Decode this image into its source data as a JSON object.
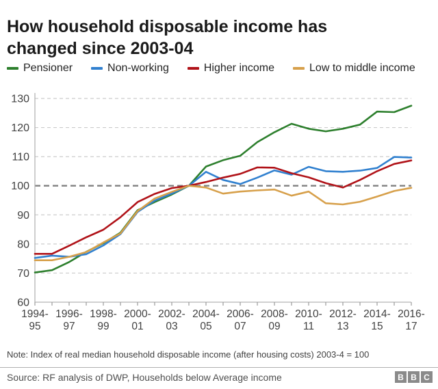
{
  "header": {
    "title": "How household disposable income has changed since 2003-04"
  },
  "footer": {
    "note": "Note: Index of real median household disposable income (after housing costs) 2003-4 = 100",
    "source": "Source: RF analysis of DWP, Households below Average income",
    "logo_letters": [
      "B",
      "B",
      "C"
    ]
  },
  "chart_data": {
    "type": "line",
    "title": "How household disposable income has changed since 2003-04",
    "xlabel": "",
    "ylabel": "",
    "ylim": [
      60,
      130
    ],
    "ytick_step": 10,
    "baseline_value": 100,
    "grid": true,
    "legend_position": "top",
    "axis_colors": {
      "gridline": "#cccccc",
      "baseline": "#808080",
      "axis_line": "#b3b3b3",
      "tick": "#999999",
      "label": "#404040"
    },
    "categories": [
      "1994-95",
      "1995-96",
      "1996-97",
      "1997-98",
      "1998-99",
      "1999-00",
      "2000-01",
      "2001-02",
      "2002-03",
      "2003-04",
      "2004-05",
      "2005-06",
      "2006-07",
      "2007-08",
      "2008-09",
      "2009-10",
      "2010-11",
      "2011-12",
      "2012-13",
      "2013-14",
      "2014-15",
      "2015-16",
      "2016-17"
    ],
    "x_labeled_every": 2,
    "series": [
      {
        "name": "Pensioner",
        "color": "#2d7f2d",
        "values": [
          70.2,
          71.0,
          73.8,
          77.3,
          80.3,
          83.9,
          91.6,
          94.4,
          97.0,
          100,
          106.6,
          108.8,
          110.3,
          115.0,
          118.4,
          121.3,
          119.6,
          118.7,
          119.6,
          121.0,
          125.5,
          125.3,
          127.5
        ]
      },
      {
        "name": "Non-working",
        "color": "#3080cf",
        "values": [
          75.2,
          76.0,
          75.6,
          76.5,
          79.5,
          83.4,
          91.0,
          94.9,
          97.3,
          100,
          104.8,
          102.0,
          100.6,
          102.8,
          105.3,
          103.8,
          106.5,
          105.0,
          104.8,
          105.2,
          106.1,
          109.9,
          109.7
        ]
      },
      {
        "name": "Higher income",
        "color": "#b01218",
        "values": [
          76.6,
          76.6,
          79.4,
          82.3,
          84.9,
          89.2,
          94.4,
          97.2,
          99.2,
          100,
          101.3,
          102.8,
          104.1,
          106.3,
          106.2,
          104.3,
          102.9,
          100.9,
          99.4,
          102.0,
          105.0,
          107.5,
          108.7
        ]
      },
      {
        "name": "Low to middle income",
        "color": "#d7a04b",
        "values": [
          74.4,
          74.4,
          75.6,
          77.2,
          80.5,
          83.6,
          91.3,
          95.6,
          97.9,
          100,
          99.4,
          97.3,
          98.0,
          98.4,
          98.7,
          96.6,
          98.0,
          94.0,
          93.6,
          94.5,
          96.3,
          98.2,
          99.3
        ]
      }
    ]
  }
}
